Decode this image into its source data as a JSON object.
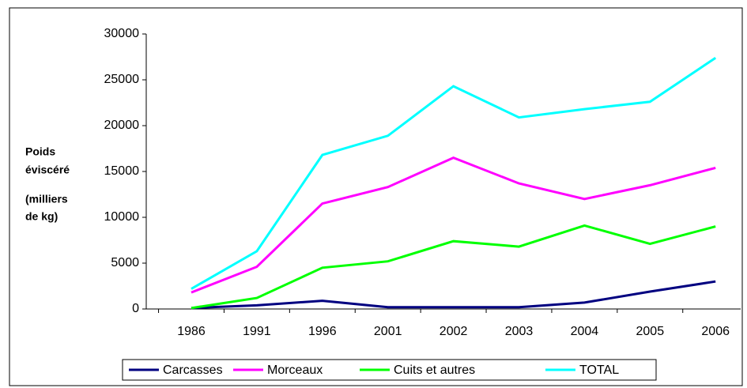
{
  "chart_data": {
    "type": "line",
    "ylabel": [
      "Poids",
      "éviscéré",
      "(milliers",
      "de kg)"
    ],
    "categories": [
      "1986",
      "1991",
      "1996",
      "2001",
      "2002",
      "2003",
      "2004",
      "2005",
      "2006"
    ],
    "series": [
      {
        "name": "Carcasses",
        "color": "#000080",
        "values": [
          100,
          400,
          900,
          200,
          200,
          200,
          700,
          1900,
          3000
        ]
      },
      {
        "name": "Morceaux",
        "color": "#ff00ff",
        "values": [
          1800,
          4600,
          11500,
          13300,
          16500,
          13700,
          12000,
          13500,
          15400
        ]
      },
      {
        "name": "Cuits et autres",
        "color": "#00ff00",
        "values": [
          100,
          1200,
          4500,
          5200,
          7400,
          6800,
          9100,
          7100,
          9000
        ]
      },
      {
        "name": "TOTAL",
        "color": "#00ffff",
        "values": [
          2200,
          6300,
          16800,
          18900,
          24300,
          20900,
          21800,
          22600,
          27400
        ]
      }
    ],
    "ylim": [
      0,
      30000
    ],
    "yticks": [
      0,
      5000,
      10000,
      15000,
      20000,
      25000,
      30000
    ],
    "grid": false
  }
}
